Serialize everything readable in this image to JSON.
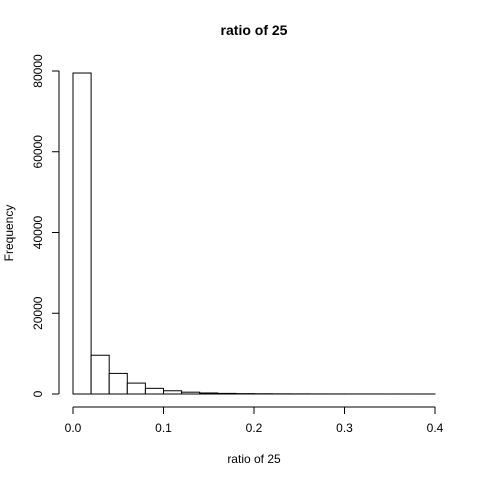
{
  "chart_data": {
    "type": "bar",
    "title": "ratio of 25",
    "xlabel": "ratio of 25",
    "ylabel": "Frequency",
    "bin_width": 0.02,
    "bins": [
      {
        "x0": 0.0,
        "x1": 0.02,
        "count": 79500
      },
      {
        "x0": 0.02,
        "x1": 0.04,
        "count": 9600
      },
      {
        "x0": 0.04,
        "x1": 0.06,
        "count": 5100
      },
      {
        "x0": 0.06,
        "x1": 0.08,
        "count": 2700
      },
      {
        "x0": 0.08,
        "x1": 0.1,
        "count": 1400
      },
      {
        "x0": 0.1,
        "x1": 0.12,
        "count": 800
      },
      {
        "x0": 0.12,
        "x1": 0.14,
        "count": 450
      },
      {
        "x0": 0.14,
        "x1": 0.16,
        "count": 250
      },
      {
        "x0": 0.16,
        "x1": 0.18,
        "count": 150
      },
      {
        "x0": 0.18,
        "x1": 0.2,
        "count": 90
      },
      {
        "x0": 0.2,
        "x1": 0.22,
        "count": 60
      },
      {
        "x0": 0.22,
        "x1": 0.24,
        "count": 40
      },
      {
        "x0": 0.24,
        "x1": 0.26,
        "count": 30
      },
      {
        "x0": 0.26,
        "x1": 0.28,
        "count": 20
      },
      {
        "x0": 0.28,
        "x1": 0.3,
        "count": 15
      },
      {
        "x0": 0.3,
        "x1": 0.32,
        "count": 10
      },
      {
        "x0": 0.32,
        "x1": 0.34,
        "count": 8
      },
      {
        "x0": 0.34,
        "x1": 0.36,
        "count": 6
      },
      {
        "x0": 0.36,
        "x1": 0.38,
        "count": 4
      },
      {
        "x0": 0.38,
        "x1": 0.4,
        "count": 3
      }
    ],
    "x_ticks": [
      0.0,
      0.1,
      0.2,
      0.3,
      0.4
    ],
    "x_tick_labels": [
      "0.0",
      "0.1",
      "0.2",
      "0.3",
      "0.4"
    ],
    "y_ticks": [
      0,
      20000,
      40000,
      60000,
      80000
    ],
    "y_tick_labels": [
      "0",
      "20000",
      "40000",
      "60000",
      "80000"
    ],
    "xlim": [
      0.0,
      0.4
    ],
    "ylim": [
      0,
      80000
    ],
    "grid": false
  }
}
